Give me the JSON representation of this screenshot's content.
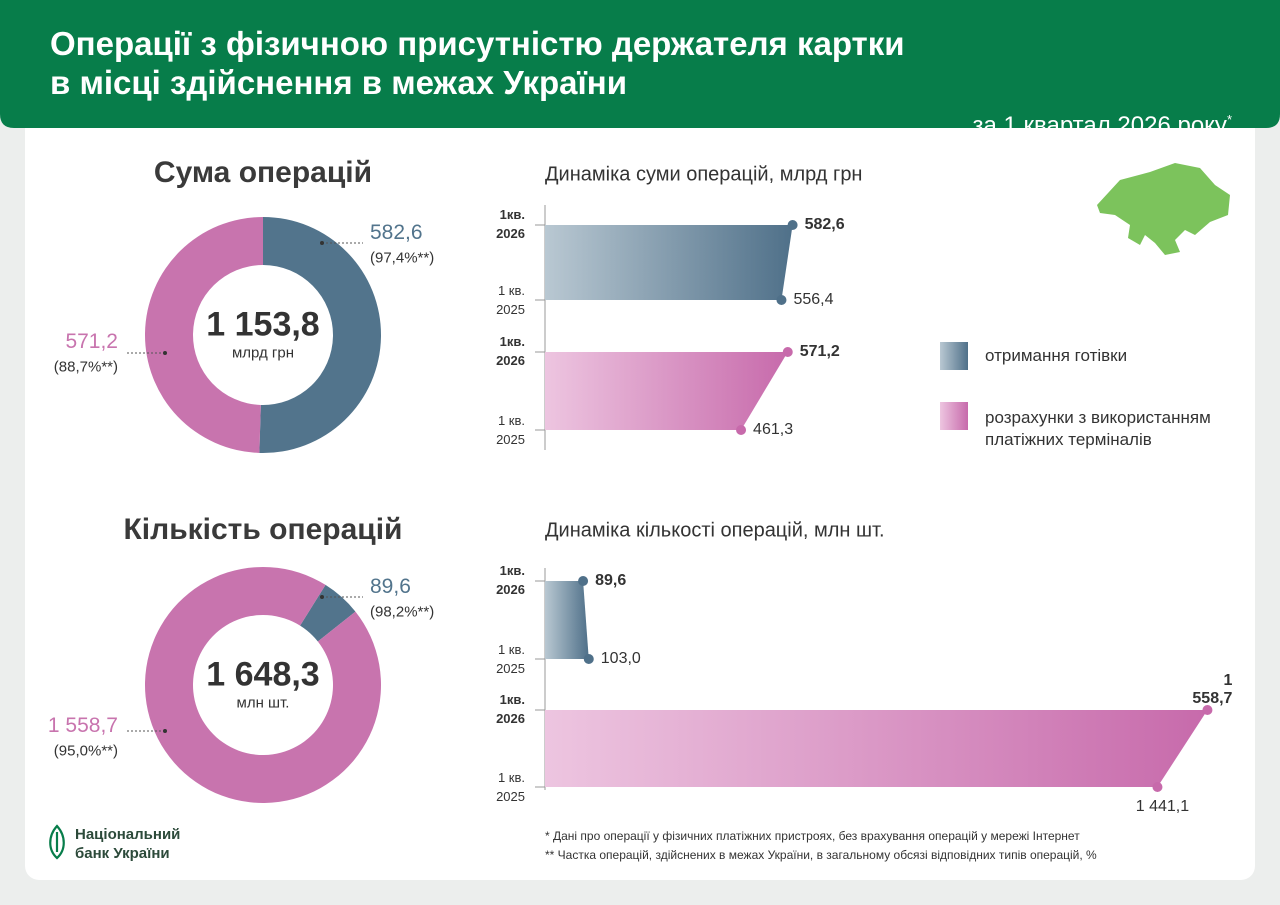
{
  "header": {
    "title": [
      "Операції з фізичною присутністю держателя картки",
      "в місці здійснення в межах України"
    ],
    "period": "за 1 квартал 2026 року",
    "period_note": "*"
  },
  "chart_data": [
    {
      "type": "donut",
      "title": "Сума операцій",
      "total": 1153.8,
      "total_label": "1 153,8",
      "unit": "млрд грн",
      "colors": [
        "#52748c",
        "#c874ae"
      ],
      "values": [
        582.6,
        571.2
      ],
      "value_labels": [
        "582,6",
        "571,2"
      ],
      "shares": [
        97.4,
        88.7
      ],
      "share_labels": [
        "(97,4%**)",
        "(88,7%**)"
      ]
    },
    {
      "type": "slope-bar",
      "title": "Динаміка суми операцій, млрд грн",
      "categories": [
        "1кв.\n2026",
        "1 кв.\n2025"
      ],
      "xlim": [
        0,
        1600
      ],
      "series": [
        {
          "name": "отримання готівки",
          "color": "#4f7089",
          "light_color": "#b9c8d2",
          "values": [
            582.6,
            556.4
          ],
          "value_labels": [
            "582,6",
            "556,4"
          ]
        },
        {
          "name": "розрахунки з використанням платіжних терміналів",
          "color": "#c76aab",
          "light_color": "#edc5e0",
          "values": [
            571.2,
            461.3
          ],
          "value_labels": [
            "571,2",
            "461,3"
          ]
        }
      ]
    },
    {
      "type": "donut",
      "title": "Кількість операцій",
      "total": 1648.3,
      "total_label": "1 648,3",
      "unit": "млн шт.",
      "colors": [
        "#52748c",
        "#c874ae"
      ],
      "values": [
        89.6,
        1558.7
      ],
      "value_labels": [
        "89,6",
        "1 558,7"
      ],
      "shares": [
        98.2,
        95.0
      ],
      "share_labels": [
        "(98,2%**)",
        "(95,0%**)"
      ]
    },
    {
      "type": "slope-bar",
      "title": "Динаміка кількості операцій, млн шт.",
      "categories": [
        "1кв.\n2026",
        "1 кв.\n2025"
      ],
      "xlim": [
        0,
        1600
      ],
      "series": [
        {
          "color": "#4f7089",
          "light_color": "#b9c8d2",
          "values": [
            89.6,
            103.0
          ],
          "value_labels": [
            "89,6",
            "103,0"
          ]
        },
        {
          "color": "#c76aab",
          "light_color": "#edc5e0",
          "values": [
            1558.7,
            1441.1
          ],
          "value_labels": [
            "1 558,7",
            "1 441,1"
          ]
        }
      ]
    }
  ],
  "footnotes": [
    "* Дані про операції у фізичних платіжних пристроях, без врахування операцій у мережі Інтернет",
    "** Частка операцій, здійснених в межах України, в загальному обсязі відповідних типів операцій, %"
  ],
  "logo": "Національний\nбанк України"
}
